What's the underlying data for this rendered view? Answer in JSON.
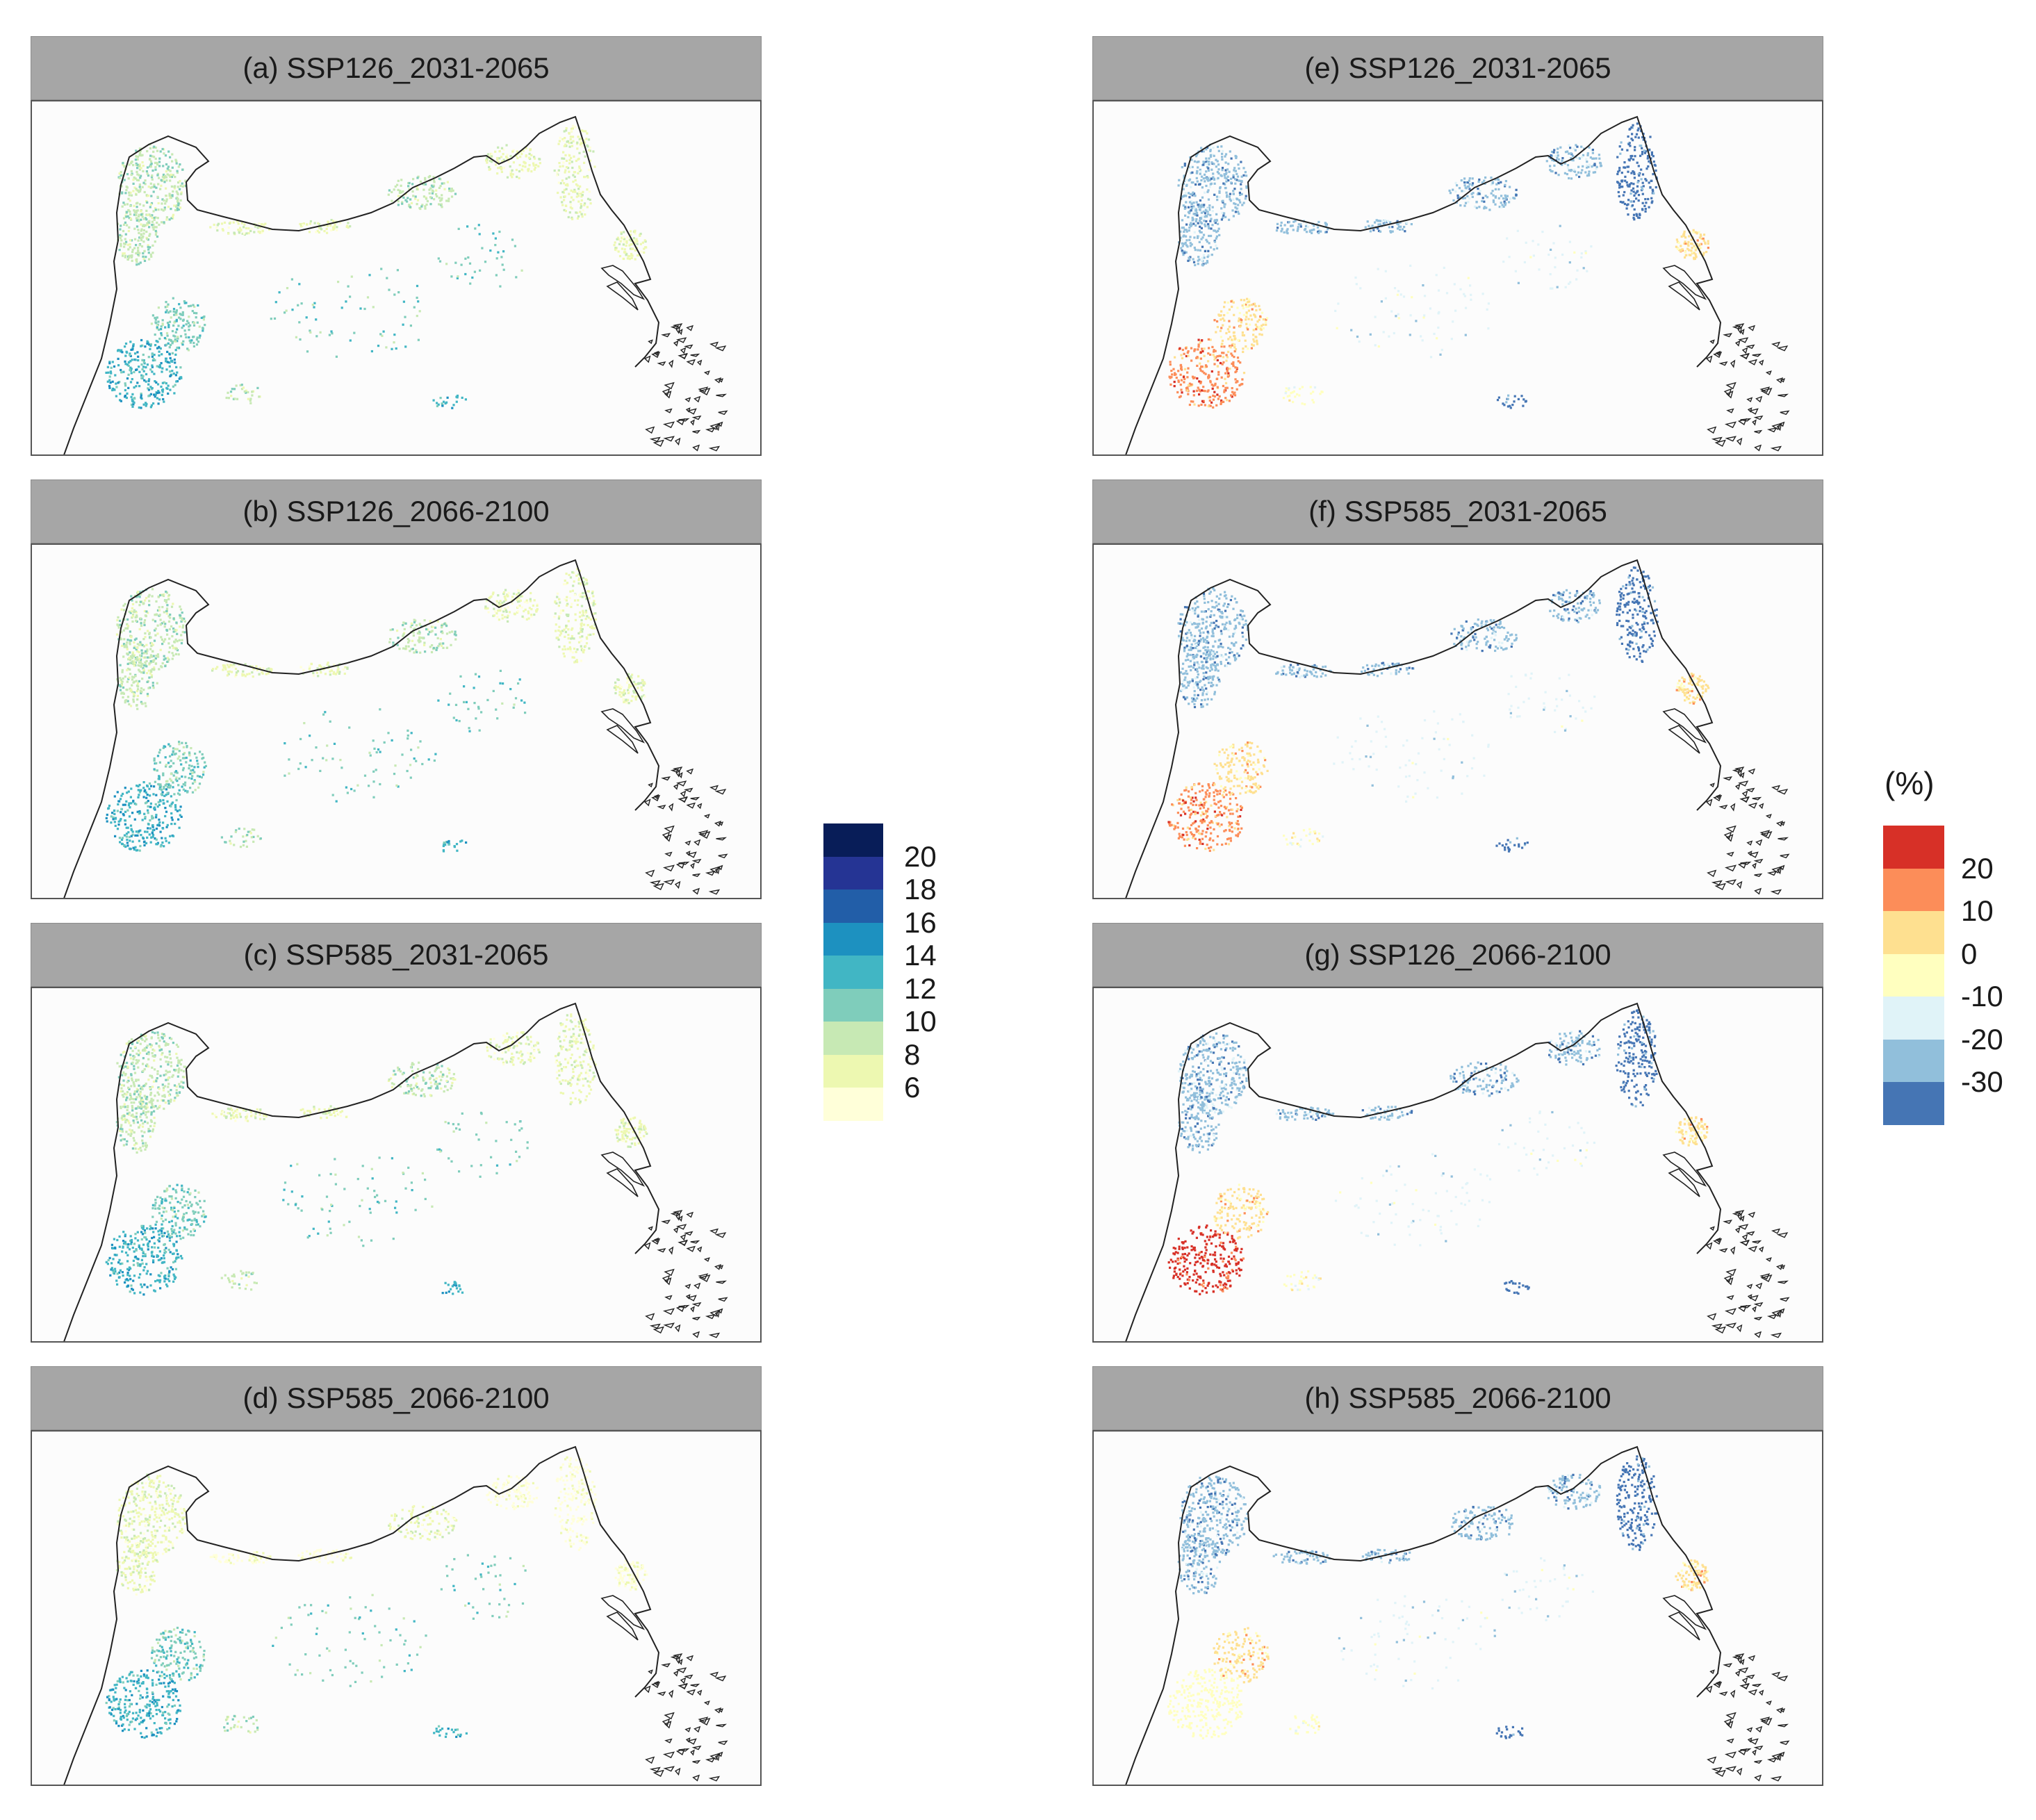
{
  "panels": [
    {
      "title": "(a) SSP126_2031-2065",
      "legend": "absolute"
    },
    {
      "title": "(b) SSP126_2066-2100",
      "legend": "absolute"
    },
    {
      "title": "(c) SSP585_2031-2065",
      "legend": "absolute"
    },
    {
      "title": "(d) SSP585_2066-2100",
      "legend": "absolute"
    },
    {
      "title": "(e) SSP126_2031-2065",
      "legend": "change"
    },
    {
      "title": "(f) SSP585_2031-2065",
      "legend": "change"
    },
    {
      "title": "(g) SSP126_2066-2100",
      "legend": "change"
    },
    {
      "title": "(h) SSP585_2066-2100",
      "legend": "change"
    }
  ],
  "legend_absolute": {
    "title": "",
    "labels": [
      "20",
      "18",
      "16",
      "14",
      "12",
      "10",
      "8",
      "6"
    ],
    "colors": [
      "#081d58",
      "#253494",
      "#225ea8",
      "#1d91c0",
      "#41b6c4",
      "#7fcdbb",
      "#c7e9b4",
      "#edf8b1",
      "#ffffd9"
    ]
  },
  "legend_change": {
    "title": "(%)",
    "labels": [
      "20",
      "10",
      "0",
      "-10",
      "-20",
      "-30"
    ],
    "colors": [
      "#d73027",
      "#fc8d59",
      "#fee090",
      "#ffffbf",
      "#e0f3f8",
      "#91bfdb",
      "#4575b4"
    ]
  }
}
